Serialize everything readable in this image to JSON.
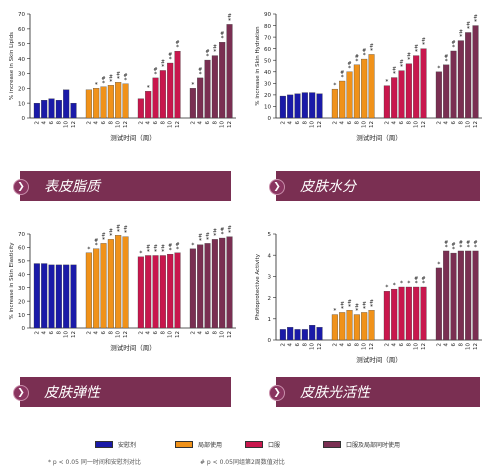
{
  "colors": {
    "placebo": "#1a1aa8",
    "topical": "#f0921a",
    "oral": "#c8174d",
    "combined": "#7a2f52",
    "banner": "#7a2f52"
  },
  "legend": {
    "items": [
      {
        "key": "placebo",
        "label": "安慰剂"
      },
      {
        "key": "topical",
        "label": "局部使用"
      },
      {
        "key": "oral",
        "label": "口服"
      },
      {
        "key": "combined",
        "label": "口服及局部同时使用"
      }
    ],
    "footnote_star": "* p < 0.05 同一时间和安慰剂对比",
    "footnote_hash": "# p < 0.05同组第2周数值对比"
  },
  "chart_data": [
    {
      "type": "bar",
      "banner_title": "表皮脂质",
      "ylabel": "% increase in Skin Lipids",
      "xlabel": "测试时间（周）",
      "ylim": [
        0,
        70
      ],
      "yticks": [
        0,
        10,
        20,
        30,
        40,
        50,
        60,
        70
      ],
      "categories": [
        "2",
        "4",
        "6",
        "8",
        "10",
        "12"
      ],
      "series": [
        {
          "key": "placebo",
          "values": [
            10,
            12,
            13,
            12,
            19,
            10
          ],
          "marks": [
            "",
            "",
            "",
            "",
            "",
            ""
          ]
        },
        {
          "key": "topical",
          "values": [
            19,
            20,
            21,
            22,
            24,
            23
          ],
          "marks": [
            "",
            "*",
            "#*",
            "#*",
            "#*",
            "#*"
          ]
        },
        {
          "key": "oral",
          "values": [
            13,
            18,
            27,
            32,
            37,
            45
          ],
          "marks": [
            "",
            "*",
            "#*",
            "#*",
            "#*",
            "#*"
          ]
        },
        {
          "key": "combined",
          "values": [
            20,
            27,
            39,
            42,
            51,
            63
          ],
          "marks": [
            "*",
            "#*",
            "#*",
            "#*",
            "#*",
            "#*"
          ]
        }
      ]
    },
    {
      "type": "bar",
      "banner_title": "皮肤水分",
      "ylabel": "% increase in Skin Hydration",
      "xlabel": "测试时间（周）",
      "ylim": [
        0,
        90
      ],
      "yticks": [
        0,
        10,
        20,
        30,
        40,
        50,
        60,
        70,
        80,
        90
      ],
      "categories": [
        "2",
        "4",
        "6",
        "8",
        "10",
        "12"
      ],
      "series": [
        {
          "key": "placebo",
          "values": [
            19,
            20,
            21,
            22,
            22,
            21
          ],
          "marks": [
            "",
            "",
            "",
            "",
            "",
            ""
          ]
        },
        {
          "key": "topical",
          "values": [
            25,
            32,
            40,
            46,
            51,
            55
          ],
          "marks": [
            "*",
            "#*",
            "#*",
            "#*",
            "#*",
            "#*"
          ]
        },
        {
          "key": "oral",
          "values": [
            28,
            35,
            41,
            47,
            54,
            60
          ],
          "marks": [
            "*",
            "#*",
            "#*",
            "#*",
            "#*",
            "#*"
          ]
        },
        {
          "key": "combined",
          "values": [
            40,
            46,
            58,
            67,
            74,
            80
          ],
          "marks": [
            "*",
            "#*",
            "#*",
            "#*",
            "#*",
            "#*"
          ]
        }
      ]
    },
    {
      "type": "bar",
      "banner_title": "皮肤弹性",
      "ylabel": "% increase in Skin Elasticity",
      "xlabel": "测试时间（周）",
      "ylim": [
        0,
        70
      ],
      "yticks": [
        0,
        10,
        20,
        30,
        40,
        50,
        60,
        70
      ],
      "categories": [
        "2",
        "4",
        "6",
        "8",
        "10",
        "12"
      ],
      "series": [
        {
          "key": "placebo",
          "values": [
            48,
            48,
            47,
            47,
            47,
            47
          ],
          "marks": [
            "",
            "",
            "",
            "",
            "",
            ""
          ]
        },
        {
          "key": "topical",
          "values": [
            56,
            59,
            63,
            66,
            69,
            68
          ],
          "marks": [
            "*",
            "#*",
            "#*",
            "#*",
            "#*",
            "#*"
          ]
        },
        {
          "key": "oral",
          "values": [
            53,
            54,
            54,
            54,
            55,
            56
          ],
          "marks": [
            "*",
            "#*",
            "#*",
            "#*",
            "#*",
            "#*"
          ]
        },
        {
          "key": "combined",
          "values": [
            59,
            62,
            63,
            66,
            67,
            68
          ],
          "marks": [
            "*",
            "#*",
            "#*",
            "#*",
            "#*",
            "#*"
          ]
        }
      ]
    },
    {
      "type": "bar",
      "banner_title": "皮肤光活性",
      "ylabel": "Photoprotective Activity",
      "xlabel": "测试时间（周）",
      "ylim": [
        0,
        5
      ],
      "yticks": [
        0,
        1,
        2,
        3,
        4,
        5
      ],
      "categories": [
        "2",
        "4",
        "6",
        "8",
        "10",
        "12"
      ],
      "series": [
        {
          "key": "placebo",
          "values": [
            0.5,
            0.6,
            0.5,
            0.5,
            0.7,
            0.6
          ],
          "marks": [
            "",
            "",
            "",
            "",
            "",
            ""
          ]
        },
        {
          "key": "topical",
          "values": [
            1.2,
            1.3,
            1.4,
            1.2,
            1.3,
            1.4
          ],
          "marks": [
            "*",
            "#*",
            "#*",
            "#*",
            "#*",
            "#*"
          ]
        },
        {
          "key": "oral",
          "values": [
            2.3,
            2.4,
            2.5,
            2.5,
            2.5,
            2.5
          ],
          "marks": [
            "*",
            "*",
            "*",
            "*",
            "#*",
            "#*"
          ]
        },
        {
          "key": "combined",
          "values": [
            3.4,
            4.2,
            4.1,
            4.2,
            4.2,
            4.2
          ],
          "marks": [
            "*",
            "#*",
            "#*",
            "#*",
            "#*",
            "#*"
          ]
        }
      ]
    }
  ]
}
